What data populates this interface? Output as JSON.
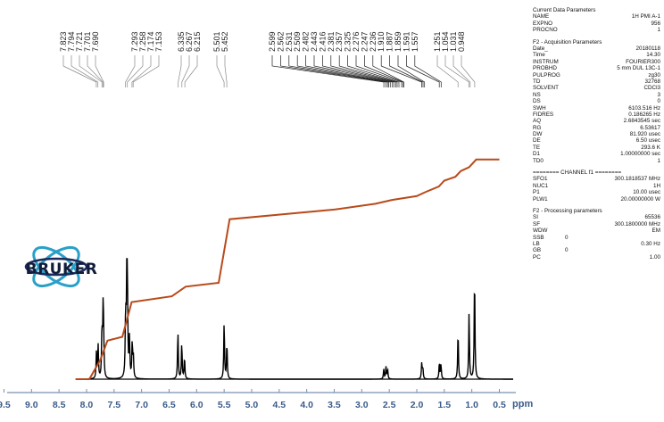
{
  "logo": {
    "text": "BRUKER"
  },
  "chart_data": {
    "type": "line",
    "title": "",
    "xlabel": "ppm",
    "ylabel": "",
    "xlim": [
      9.5,
      0.5
    ],
    "x_ticks": [
      "9.5",
      "9.0",
      "8.5",
      "8.0",
      "7.5",
      "7.0",
      "6.5",
      "6.0",
      "5.5",
      "5.0",
      "4.5",
      "4.0",
      "3.5",
      "3.0",
      "2.5",
      "2.0",
      "1.5",
      "1.0",
      "0.5"
    ],
    "peak_labels": [
      "7.823",
      "7.794",
      "7.721",
      "7.701",
      "7.690",
      "7.293",
      "7.258",
      "7.174",
      "7.153",
      "6.335",
      "6.267",
      "6.215",
      "5.501",
      "5.452",
      "2.599",
      "2.562",
      "2.531",
      "2.509",
      "2.482",
      "2.443",
      "2.416",
      "2.381",
      "2.357",
      "2.325",
      "2.276",
      "2.247",
      "2.236",
      "1.910",
      "1.887",
      "1.859",
      "1.591",
      "1.557",
      "1.251",
      "1.054",
      "1.031",
      "0.948"
    ],
    "series": [
      {
        "peaks": [
          {
            "x": 7.82,
            "h": 0.22
          },
          {
            "x": 7.79,
            "h": 0.28
          },
          {
            "x": 7.72,
            "h": 0.4
          },
          {
            "x": 7.7,
            "h": 0.5
          },
          {
            "x": 7.69,
            "h": 0.3
          },
          {
            "x": 7.29,
            "h": 0.52
          },
          {
            "x": 7.27,
            "h": 0.6
          },
          {
            "x": 7.26,
            "h": 0.95
          },
          {
            "x": 7.22,
            "h": 0.32
          },
          {
            "x": 7.17,
            "h": 0.3
          },
          {
            "x": 7.15,
            "h": 0.18
          },
          {
            "x": 6.34,
            "h": 0.4
          },
          {
            "x": 6.27,
            "h": 0.3
          },
          {
            "x": 6.22,
            "h": 0.18
          },
          {
            "x": 5.5,
            "h": 0.48
          },
          {
            "x": 5.45,
            "h": 0.3
          },
          {
            "x": 2.6,
            "h": 0.08
          },
          {
            "x": 2.56,
            "h": 0.1
          },
          {
            "x": 2.53,
            "h": 0.08
          },
          {
            "x": 1.91,
            "h": 0.13
          },
          {
            "x": 1.89,
            "h": 0.09
          },
          {
            "x": 1.59,
            "h": 0.14
          },
          {
            "x": 1.56,
            "h": 0.12
          },
          {
            "x": 1.25,
            "h": 0.4
          },
          {
            "x": 1.05,
            "h": 0.55
          },
          {
            "x": 0.95,
            "h": 0.88
          }
        ]
      },
      {
        "integral": [
          [
            8.2,
            0.0
          ],
          [
            7.95,
            0.0
          ],
          [
            7.75,
            0.1
          ],
          [
            7.62,
            0.2
          ],
          [
            7.35,
            0.22
          ],
          [
            7.18,
            0.4
          ],
          [
            6.45,
            0.43
          ],
          [
            6.2,
            0.48
          ],
          [
            5.6,
            0.5
          ],
          [
            5.4,
            0.83
          ],
          [
            3.5,
            0.88
          ],
          [
            2.75,
            0.91
          ],
          [
            2.45,
            0.93
          ],
          [
            2.0,
            0.95
          ],
          [
            1.85,
            0.97
          ],
          [
            1.6,
            1.0
          ],
          [
            1.5,
            1.03
          ],
          [
            1.3,
            1.05
          ],
          [
            1.2,
            1.08
          ],
          [
            1.05,
            1.1
          ],
          [
            0.92,
            1.14
          ],
          [
            0.5,
            1.14
          ]
        ]
      }
    ]
  },
  "parameters": {
    "title": "Current Data Parameters",
    "rows1": [
      {
        "k": "NAME",
        "v": "1H PMI A-1"
      },
      {
        "k": "EXPNO",
        "v": "956"
      },
      {
        "k": "PROCNO",
        "v": "1"
      }
    ],
    "title2": "F2 - Acquisition Parameters",
    "rows2": [
      {
        "k": "Date_",
        "v": "20180118"
      },
      {
        "k": "Time",
        "v": "14.30"
      },
      {
        "k": "INSTRUM",
        "v": "FOURIER300"
      },
      {
        "k": "PROBHD",
        "v": "5 mm DUL 13C-1"
      },
      {
        "k": "PULPROG",
        "v": "zg30"
      },
      {
        "k": "TD",
        "v": "32768"
      },
      {
        "k": "SOLVENT",
        "v": "CDCl3"
      },
      {
        "k": "NS",
        "v": "3"
      },
      {
        "k": "DS",
        "v": "0"
      },
      {
        "k": "SWH",
        "v": "6103.516 Hz"
      },
      {
        "k": "FIDRES",
        "v": "0.186265 Hz"
      },
      {
        "k": "AQ",
        "v": "2.6843545 sec"
      },
      {
        "k": "RG",
        "v": "6.53617"
      },
      {
        "k": "DW",
        "v": "81.920 usec"
      },
      {
        "k": "DE",
        "v": "6.50 usec"
      },
      {
        "k": "TE",
        "v": "293.6 K"
      },
      {
        "k": "D1",
        "v": "1.00000000 sec"
      },
      {
        "k": "TD0",
        "v": "1"
      }
    ],
    "title3": "======== CHANNEL f1 ========",
    "rows3": [
      {
        "k": "SFO1",
        "v": "300.1818537 MHz"
      },
      {
        "k": "NUC1",
        "v": "1H"
      },
      {
        "k": "P1",
        "v": "10.00 usec"
      },
      {
        "k": "PLW1",
        "v": "20.00000000 W"
      }
    ],
    "title4": "F2 - Processing parameters",
    "rows4": [
      {
        "k": "SI",
        "m": "",
        "v": "65536"
      },
      {
        "k": "SF",
        "m": "",
        "v": "300.1800000 MHz"
      },
      {
        "k": "WDW",
        "m": "",
        "v": "EM"
      },
      {
        "k": "SSB",
        "m": "0",
        "v": ""
      },
      {
        "k": "LB",
        "m": "",
        "v": "0.30 Hz"
      },
      {
        "k": "GB",
        "m": "0",
        "v": ""
      },
      {
        "k": "PC",
        "m": "",
        "v": "1.00"
      }
    ]
  }
}
